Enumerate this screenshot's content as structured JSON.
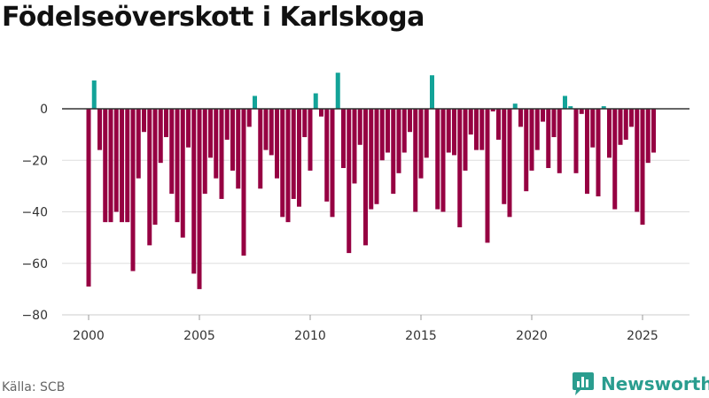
{
  "title": "Födelseöverskott i Karlskoga",
  "source": "Källa: SCB",
  "brand": {
    "name": "Newsworthy",
    "icon": "newsworthy-logo-icon"
  },
  "colors": {
    "positive": "#13a398",
    "negative": "#960042",
    "zero_line": "#333333",
    "grid": "#dddddd"
  },
  "chart_data": {
    "type": "bar",
    "title": "Födelseöverskott i Karlskoga",
    "xlabel": "",
    "ylabel": "",
    "frequency": "quarterly",
    "x_start": "2000Q1",
    "xlim": [
      1999.2,
      2027.2
    ],
    "ylim": [
      -80,
      18
    ],
    "x_ticks": [
      2000,
      2005,
      2010,
      2015,
      2020,
      2025
    ],
    "y_ticks": [
      0,
      -20,
      -40,
      -60,
      -80
    ],
    "grid": true,
    "values": [
      -69,
      11,
      -16,
      -44,
      -44,
      -40,
      -44,
      -44,
      -63,
      -27,
      -9,
      -53,
      -45,
      -21,
      -11,
      -33,
      -44,
      -50,
      -15,
      -64,
      -70,
      -33,
      -19,
      -27,
      -35,
      -12,
      -24,
      -31,
      -57,
      -7,
      5,
      -31,
      -16,
      -18,
      -27,
      -42,
      -44,
      -35,
      -38,
      -11,
      -24,
      6,
      -3,
      -36,
      -42,
      14,
      -23,
      -56,
      -29,
      -14,
      -53,
      -39,
      -37,
      -20,
      -17,
      -33,
      -25,
      -17,
      -9,
      -40,
      -27,
      -19,
      13,
      -39,
      -40,
      -17,
      -18,
      -46,
      -24,
      -10,
      -16,
      -16,
      -52,
      -1,
      -12,
      -37,
      -42,
      2,
      -7,
      -32,
      -24,
      -16,
      -5,
      -23,
      -11,
      -25,
      5,
      1,
      -25,
      -2,
      -33,
      -15,
      -34,
      1,
      -19,
      -39,
      -14,
      -12,
      -7,
      -40,
      -45,
      -21,
      -17
    ]
  }
}
